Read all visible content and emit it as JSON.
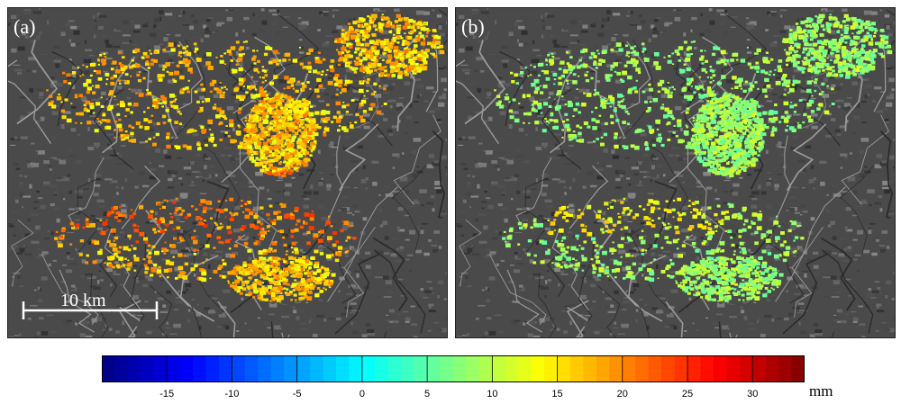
{
  "panels": [
    {
      "label": "(a)"
    },
    {
      "label": "(b)"
    }
  ],
  "scale_bar": {
    "label": "10 km"
  },
  "colorbar": {
    "unit": "mm",
    "min": -20,
    "max": 34,
    "ticks": [
      "-15",
      "-10",
      "-5",
      "0",
      "5",
      "10",
      "15",
      "20",
      "25",
      "30"
    ],
    "tick_values": [
      -15,
      -10,
      -5,
      0,
      5,
      10,
      15,
      20,
      25,
      30
    ],
    "colormap": "jet"
  }
}
